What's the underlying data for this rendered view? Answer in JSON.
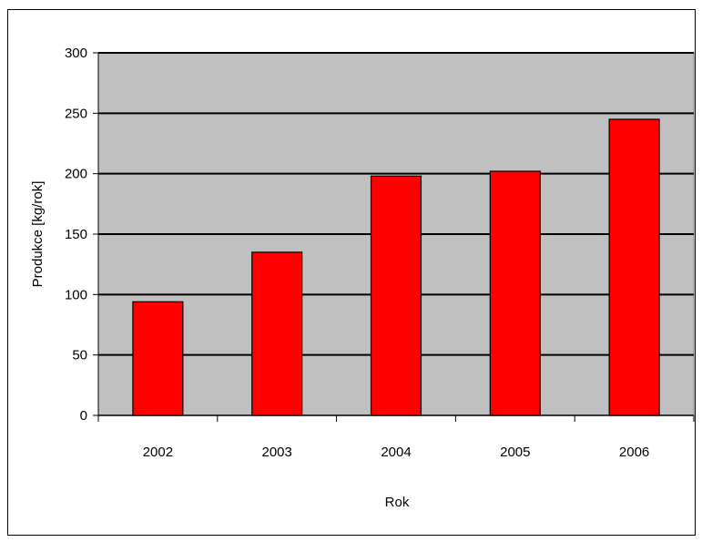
{
  "chart_data": {
    "type": "bar",
    "categories": [
      "2002",
      "2003",
      "2004",
      "2005",
      "2006"
    ],
    "values": [
      94,
      135,
      198,
      202,
      245
    ],
    "xlabel": "Rok",
    "ylabel": "Produkce [kg/rok]",
    "ylim": [
      0,
      300
    ],
    "yticks": [
      0,
      50,
      100,
      150,
      200,
      250,
      300
    ],
    "grid": true,
    "legend": "none",
    "colors": {
      "bar": "#ff0000",
      "plot_background": "#c0c0c0",
      "gridline": "#000000"
    }
  }
}
